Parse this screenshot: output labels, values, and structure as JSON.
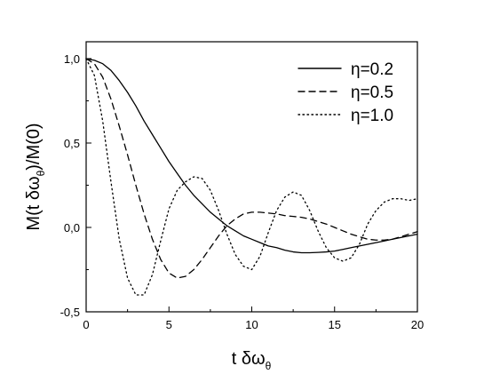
{
  "chart_data": {
    "type": "line",
    "xlabel": {
      "text": "t δω",
      "subscript": "θ"
    },
    "ylabel": {
      "prefix": "M(t δω",
      "subscript": "θ",
      "suffix": ")/M(0)"
    },
    "xlim": [
      0,
      20
    ],
    "ylim": [
      -0.5,
      1.1
    ],
    "xticks": [
      0,
      5,
      10,
      15,
      20
    ],
    "xtick_labels": [
      "0",
      "5",
      "10",
      "15",
      "20"
    ],
    "yticks": [
      -0.5,
      0.0,
      0.5,
      1.0
    ],
    "ytick_labels": [
      "-0,5",
      "0,0",
      "0,5",
      "1,0"
    ],
    "grid": false,
    "legend_position": "top-right",
    "series": [
      {
        "name": "η=0.2",
        "style": "solid",
        "color": "#000000",
        "x": [
          0,
          0.5,
          1,
          1.5,
          2,
          2.5,
          3,
          3.5,
          4,
          4.5,
          5,
          5.5,
          6,
          6.5,
          7,
          7.5,
          8,
          8.5,
          9,
          9.5,
          10,
          10.5,
          11,
          11.5,
          12,
          12.5,
          13,
          13.5,
          14,
          14.5,
          15,
          15.5,
          16,
          16.5,
          17,
          17.5,
          18,
          18.5,
          19,
          19.5,
          20
        ],
        "values": [
          1.0,
          0.99,
          0.97,
          0.93,
          0.87,
          0.8,
          0.72,
          0.63,
          0.55,
          0.47,
          0.39,
          0.32,
          0.25,
          0.19,
          0.14,
          0.09,
          0.05,
          0.01,
          -0.02,
          -0.05,
          -0.07,
          -0.09,
          -0.11,
          -0.12,
          -0.135,
          -0.145,
          -0.15,
          -0.15,
          -0.148,
          -0.145,
          -0.14,
          -0.13,
          -0.12,
          -0.11,
          -0.1,
          -0.09,
          -0.08,
          -0.07,
          -0.06,
          -0.05,
          -0.04
        ]
      },
      {
        "name": "η=0.5",
        "style": "dashed",
        "color": "#000000",
        "x": [
          0,
          0.5,
          1,
          1.5,
          2,
          2.5,
          3,
          3.5,
          4,
          4.5,
          5,
          5.5,
          6,
          6.5,
          7,
          7.5,
          8,
          8.5,
          9,
          9.5,
          10,
          10.5,
          11,
          11.5,
          12,
          12.5,
          13,
          13.5,
          14,
          14.5,
          15,
          15.5,
          16,
          16.5,
          17,
          17.5,
          18,
          18.5,
          19,
          19.5,
          20
        ],
        "values": [
          1.0,
          0.97,
          0.89,
          0.76,
          0.6,
          0.43,
          0.25,
          0.08,
          -0.07,
          -0.19,
          -0.27,
          -0.3,
          -0.29,
          -0.25,
          -0.19,
          -0.12,
          -0.05,
          0.01,
          0.05,
          0.08,
          0.09,
          0.09,
          0.085,
          0.08,
          0.07,
          0.065,
          0.06,
          0.05,
          0.035,
          0.02,
          0.0,
          -0.02,
          -0.04,
          -0.055,
          -0.07,
          -0.075,
          -0.075,
          -0.07,
          -0.055,
          -0.04,
          -0.025
        ]
      },
      {
        "name": "η=1.0",
        "style": "dotted",
        "color": "#000000",
        "x": [
          0,
          0.5,
          1,
          1.5,
          2,
          2.5,
          3,
          3.5,
          4,
          4.5,
          5,
          5.5,
          6,
          6.5,
          7,
          7.5,
          8,
          8.5,
          9,
          9.5,
          10,
          10.5,
          11,
          11.5,
          12,
          12.5,
          13,
          13.5,
          14,
          14.5,
          15,
          15.5,
          16,
          16.5,
          17,
          17.5,
          18,
          18.5,
          19,
          19.5,
          20
        ],
        "values": [
          1.0,
          0.9,
          0.63,
          0.27,
          -0.07,
          -0.3,
          -0.4,
          -0.4,
          -0.28,
          -0.08,
          0.11,
          0.22,
          0.27,
          0.3,
          0.29,
          0.22,
          0.1,
          -0.04,
          -0.16,
          -0.23,
          -0.25,
          -0.17,
          -0.03,
          0.1,
          0.18,
          0.21,
          0.19,
          0.1,
          -0.02,
          -0.12,
          -0.18,
          -0.2,
          -0.18,
          -0.1,
          0.02,
          0.1,
          0.15,
          0.17,
          0.17,
          0.16,
          0.17
        ]
      }
    ]
  }
}
